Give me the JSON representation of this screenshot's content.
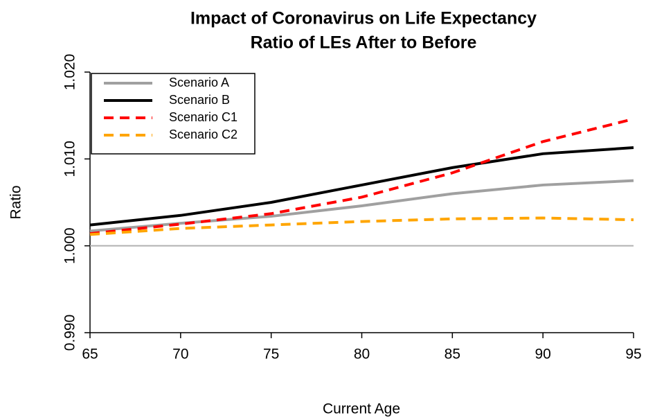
{
  "chart_data": {
    "type": "line",
    "title": "Impact of Coronavirus on Life Expectancy",
    "subtitle": "Ratio of LEs After to Before",
    "x_label": "Current Age",
    "y_label": "Ratio",
    "x": [
      65,
      70,
      75,
      80,
      85,
      90,
      95
    ],
    "series": [
      {
        "name": "Scenario A",
        "color": "#a0a0a0",
        "style": "solid",
        "values": [
          1.0017,
          1.0026,
          1.0034,
          1.0046,
          1.006,
          1.007,
          1.0075
        ]
      },
      {
        "name": "Scenario B",
        "color": "#000000",
        "style": "solid",
        "values": [
          1.0024,
          1.0035,
          1.005,
          1.007,
          1.009,
          1.0106,
          1.0113
        ]
      },
      {
        "name": "Scenario C1",
        "color": "#ff0000",
        "style": "dashed",
        "values": [
          1.0014,
          1.0025,
          1.0037,
          1.0056,
          1.0084,
          1.012,
          1.0146
        ]
      },
      {
        "name": "Scenario C2",
        "color": "#ffa500",
        "style": "dashed",
        "values": [
          1.0013,
          1.002,
          1.0024,
          1.0028,
          1.0031,
          1.0032,
          1.003
        ]
      }
    ],
    "reference_line": {
      "value": 1,
      "color": "#b0b0b0"
    },
    "xlim": [
      65,
      95
    ],
    "ylim": [
      0.99,
      1.02
    ],
    "xticks": [
      65,
      70,
      75,
      80,
      85,
      90,
      95
    ],
    "yticks": [
      {
        "value": 0.99,
        "label": "0.990"
      },
      {
        "value": 1,
        "label": "1.000"
      },
      {
        "value": 1.01,
        "label": "1.010"
      },
      {
        "value": 1.02,
        "label": "1.020"
      }
    ],
    "legend": "top-left"
  }
}
